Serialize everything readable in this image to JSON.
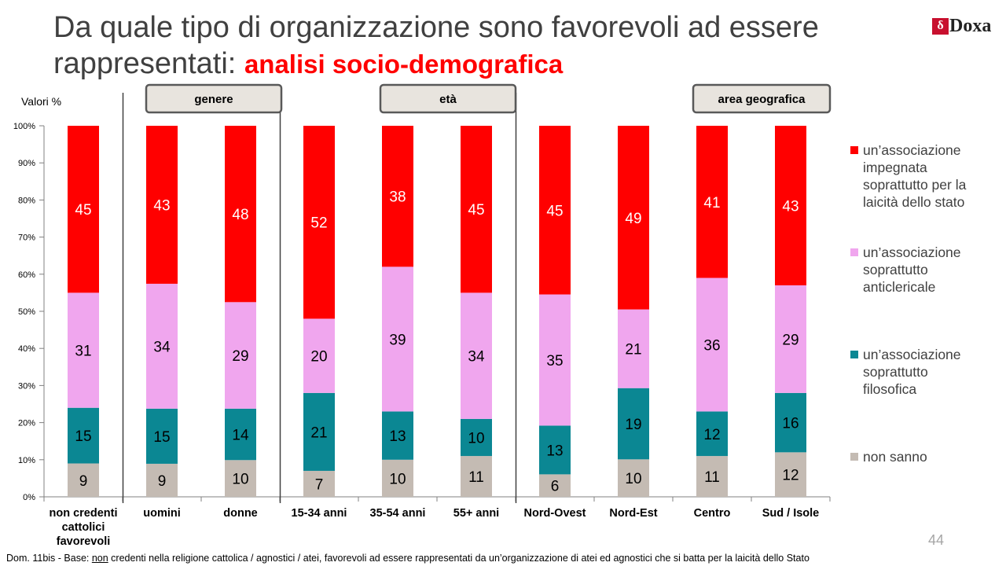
{
  "title": {
    "main": "Da quale tipo di organizzazione sono favorevoli ad essere rappresentati:",
    "highlight": "analisi socio-demografica"
  },
  "logo": {
    "mark": "δ",
    "text": "Doxa",
    "icon": "doxa-logo-icon"
  },
  "page_number": "44",
  "footnote": {
    "prefix": "Dom. 11bis - Base: ",
    "underlined": "non",
    "rest": " credenti nella religione cattolica / agnostici / atei, favorevoli ad essere rappresentati da un’organizzazione di atei ed agnostici che si batta per la laicità dello Stato"
  },
  "chart_data": {
    "type": "bar",
    "stacked": true,
    "ylabel": "Valori %",
    "ylim": [
      0,
      100
    ],
    "yticks": [
      "0%",
      "10%",
      "20%",
      "30%",
      "40%",
      "50%",
      "60%",
      "70%",
      "80%",
      "90%",
      "100%"
    ],
    "categories": [
      "non credenti cattolici favorevoli",
      "uomini",
      "donne",
      "15-34 anni",
      "35-54 anni",
      "55+ anni",
      "Nord-Ovest",
      "Nord-Est",
      "Centro",
      "Sud / Isole"
    ],
    "group_headers": [
      "genere",
      "età",
      "area geografica"
    ],
    "series": [
      {
        "name": "non sanno",
        "color": "#c4bbb3",
        "values": [
          9,
          9,
          10,
          7,
          10,
          11,
          6,
          10,
          11,
          12
        ]
      },
      {
        "name": "un’associazione soprattutto filosofica",
        "color": "#0b8793",
        "values": [
          15,
          15,
          14,
          21,
          13,
          10,
          13,
          19,
          12,
          16
        ]
      },
      {
        "name": "un’associazione soprattutto anticlericale",
        "color": "#f0a6ee",
        "values": [
          31,
          34,
          29,
          20,
          39,
          34,
          35,
          21,
          36,
          29
        ]
      },
      {
        "name": "un’associazione impegnata soprattutto per la laicità dello stato",
        "color": "#ff0000",
        "values": [
          45,
          43,
          48,
          52,
          38,
          45,
          45,
          49,
          41,
          43
        ]
      }
    ],
    "legend_position": "right",
    "grid": false
  }
}
